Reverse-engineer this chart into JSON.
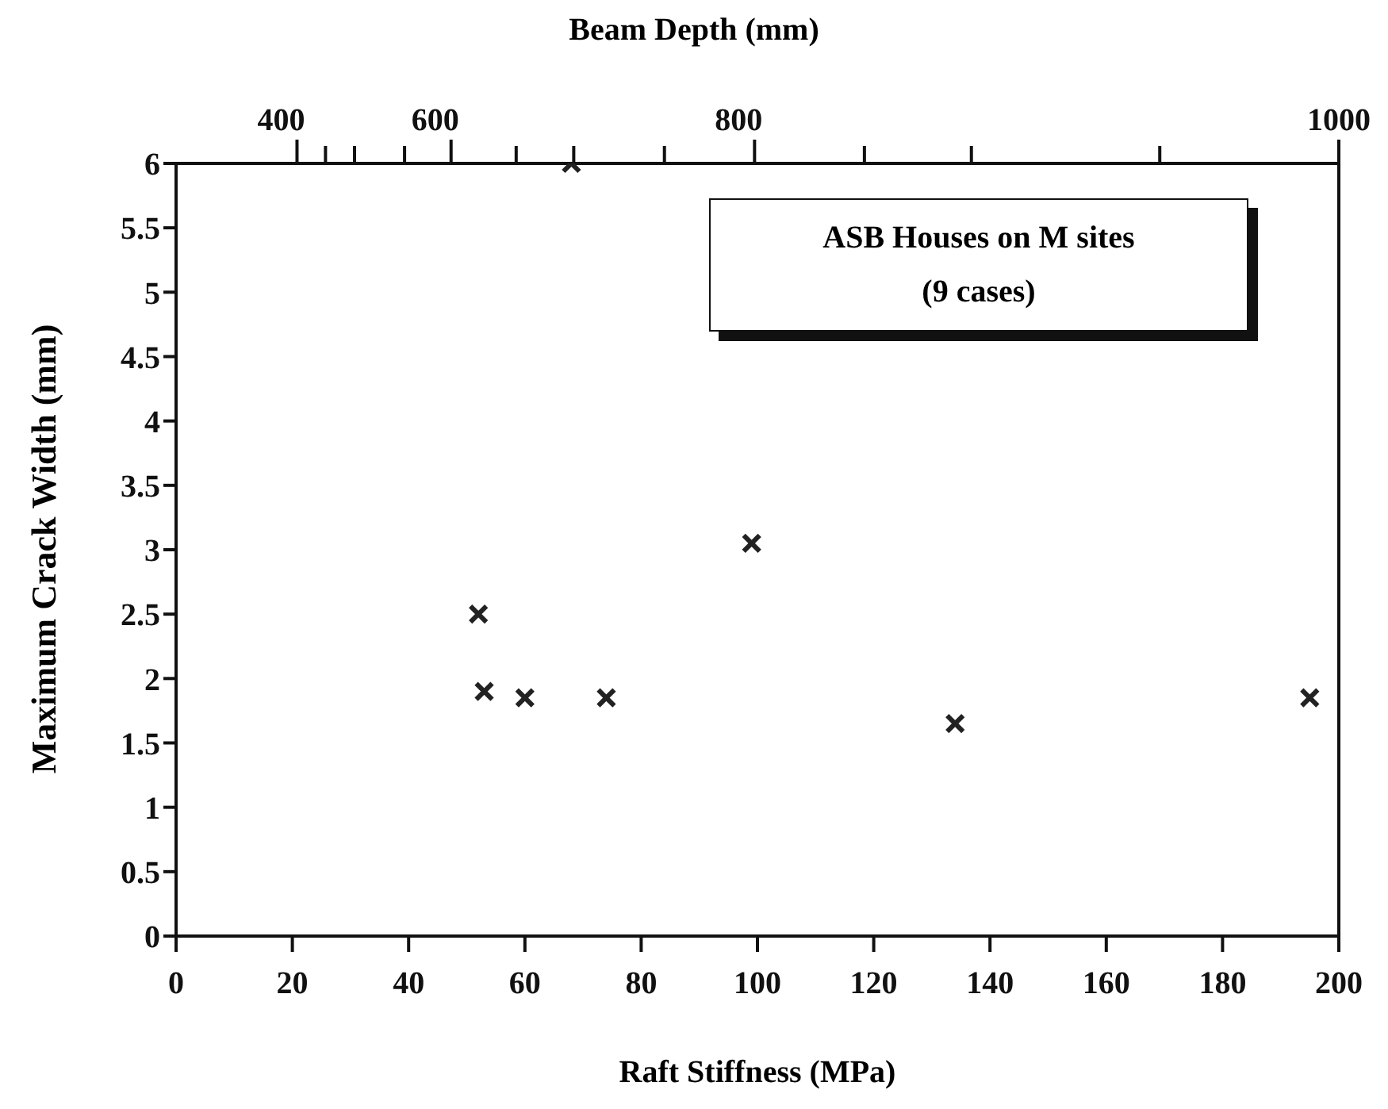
{
  "chart_data": {
    "type": "scatter",
    "xlabel": "Raft Stiffness (MPa)",
    "ylabel": "Maximum Crack Width (mm)",
    "x2label": "Beam Depth (mm)",
    "x": [
      52,
      53,
      60,
      74,
      99,
      134,
      195,
      68
    ],
    "values": [
      2.5,
      1.9,
      1.85,
      1.85,
      3.05,
      1.65,
      1.85,
      6
    ],
    "color": "#222222",
    "marker": "cross",
    "xlim": [
      0,
      200
    ],
    "xticks": [
      0,
      20,
      40,
      60,
      80,
      100,
      120,
      140,
      160,
      180,
      200
    ],
    "ylim": [
      0,
      6
    ],
    "yticks": [
      0,
      0.5,
      1,
      1.5,
      2,
      2.5,
      3,
      3.5,
      4,
      4.5,
      5,
      5.5,
      6
    ],
    "annotations": [
      "ASB Houses on M sites",
      "(9 cases)",
      "400",
      "600",
      "800",
      "1000"
    ]
  }
}
